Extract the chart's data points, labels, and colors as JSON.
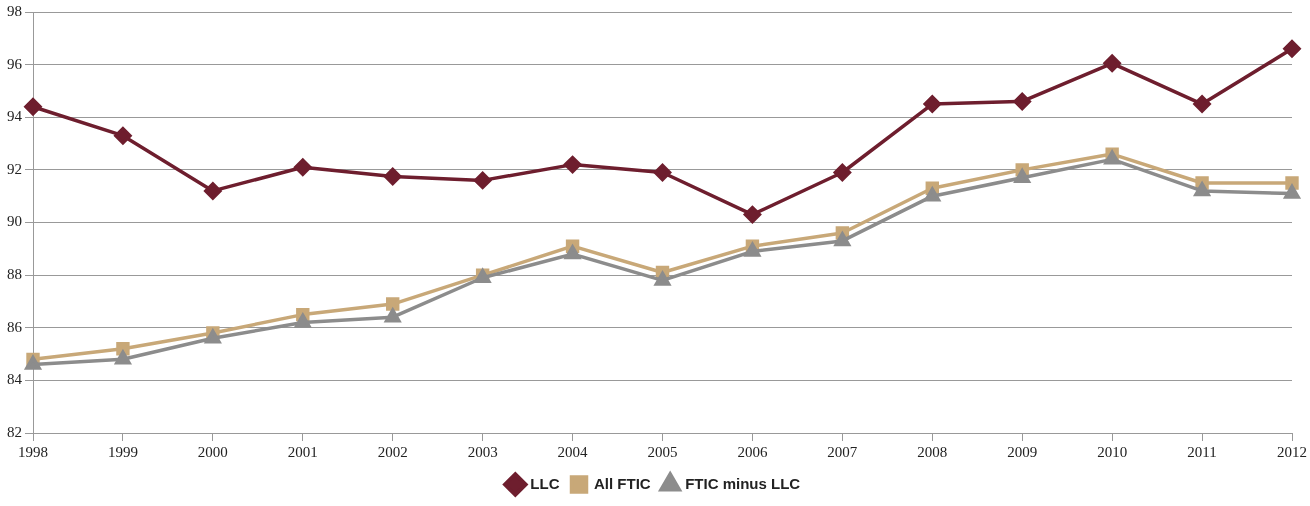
{
  "chart_data": {
    "type": "line",
    "categories": [
      "1998",
      "1999",
      "2000",
      "2001",
      "2002",
      "2003",
      "2004",
      "2005",
      "2006",
      "2007",
      "2008",
      "2009",
      "2010",
      "2011",
      "2012"
    ],
    "series": [
      {
        "name": "LLC",
        "color": "#6e1e2e",
        "marker": "diamond",
        "values": [
          94.4,
          93.3,
          91.2,
          92.1,
          91.75,
          91.6,
          92.2,
          91.9,
          90.3,
          91.9,
          94.5,
          94.6,
          96.05,
          94.5,
          96.6
        ]
      },
      {
        "name": "All FTIC",
        "color": "#c8a878",
        "marker": "square",
        "values": [
          84.8,
          85.2,
          85.8,
          86.5,
          86.9,
          88.0,
          89.1,
          88.1,
          89.1,
          89.6,
          91.3,
          92.0,
          92.6,
          91.5,
          91.5
        ]
      },
      {
        "name": "FTIC minus LLC",
        "color": "#8c8c8c",
        "marker": "triangle",
        "values": [
          84.6,
          84.8,
          85.6,
          86.2,
          86.4,
          87.9,
          88.8,
          87.8,
          88.9,
          89.3,
          91.0,
          91.7,
          92.4,
          91.2,
          91.1
        ]
      }
    ],
    "ylim": [
      82,
      98
    ],
    "yticks": [
      82,
      84,
      86,
      88,
      90,
      92,
      94,
      96,
      98
    ],
    "grid": "y",
    "legend": "bottom",
    "line_style": "solid"
  }
}
